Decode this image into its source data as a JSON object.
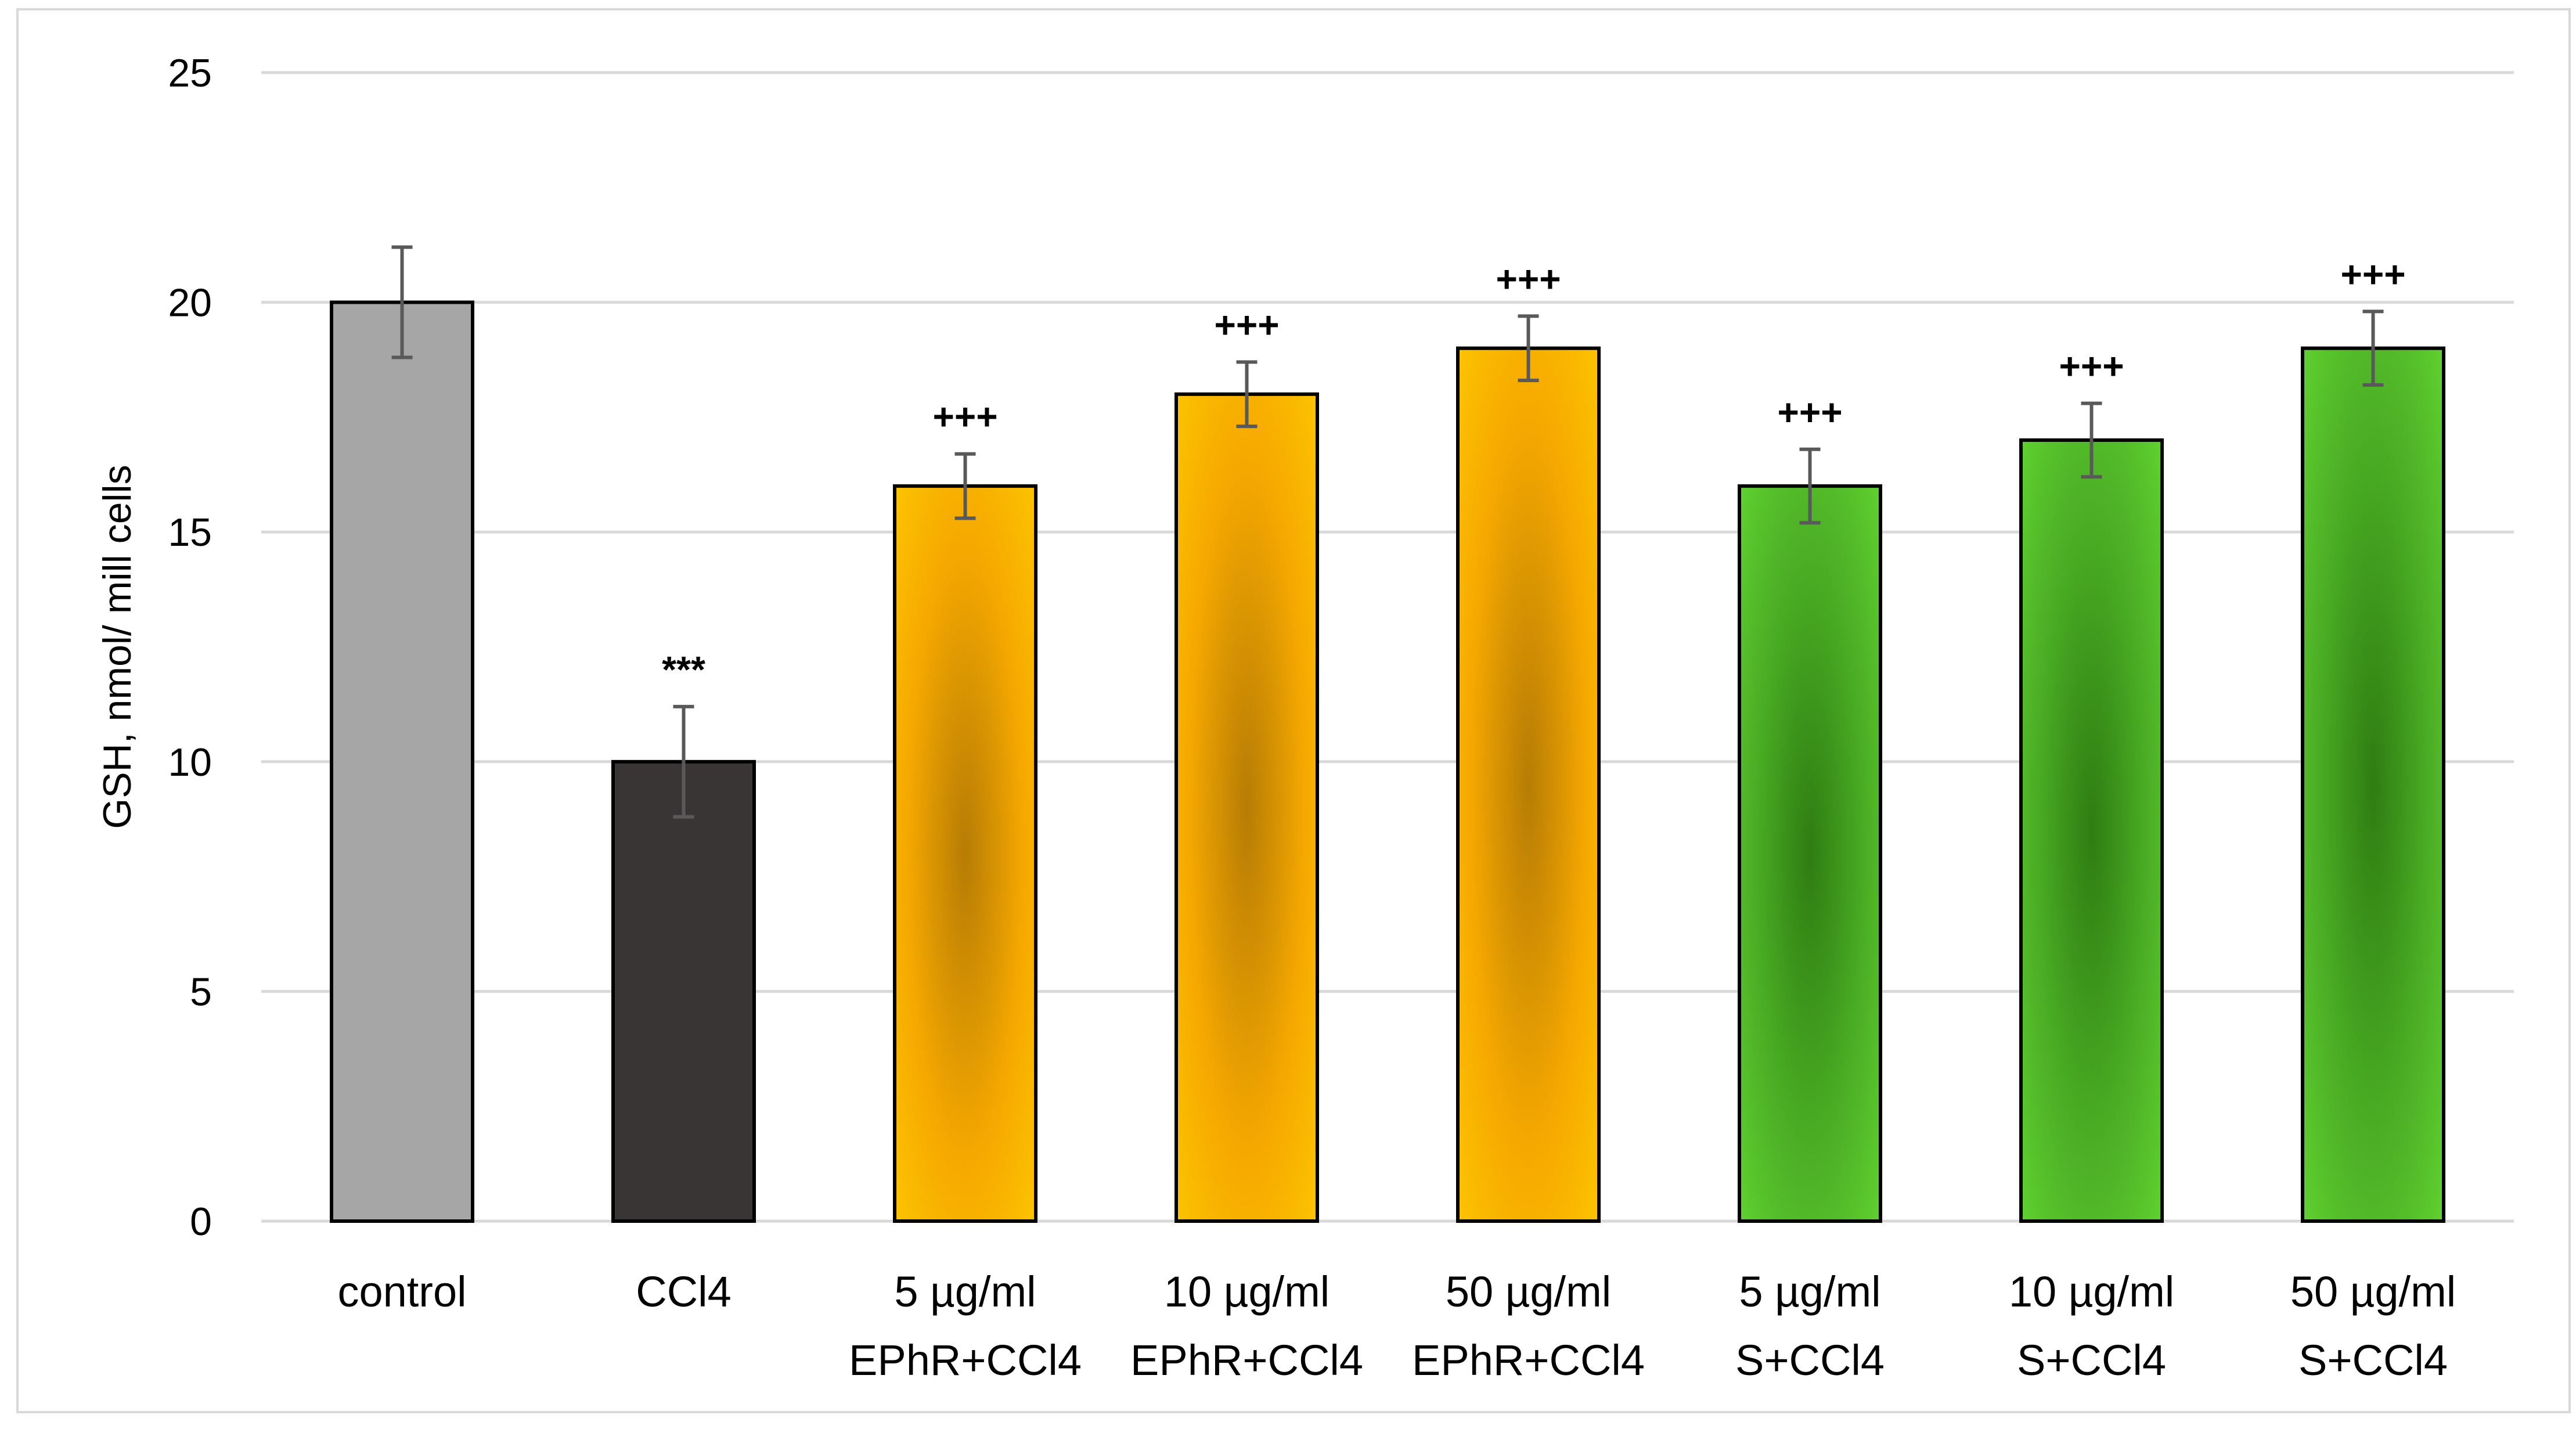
{
  "chart_data": {
    "type": "bar",
    "title": "",
    "xlabel": "",
    "ylabel": "GSH, nmol/ mill cells",
    "ylim": [
      0,
      25
    ],
    "yticks": [
      0,
      5,
      10,
      15,
      20,
      25
    ],
    "grid": true,
    "categories": [
      {
        "lines": [
          "control"
        ]
      },
      {
        "lines": [
          "CCl4"
        ]
      },
      {
        "lines": [
          "5 µg/ml",
          "EPhR+CCl4"
        ]
      },
      {
        "lines": [
          "10 µg/ml",
          "EPhR+CCl4"
        ]
      },
      {
        "lines": [
          "50 µg/ml",
          "EPhR+CCl4"
        ]
      },
      {
        "lines": [
          "5 µg/ml",
          "S+CCl4"
        ]
      },
      {
        "lines": [
          "10 µg/ml",
          "S+CCl4"
        ]
      },
      {
        "lines": [
          "50 µg/ml",
          "S+CCl4"
        ]
      }
    ],
    "values": [
      20,
      10,
      16,
      18,
      19,
      16,
      17,
      19
    ],
    "errors": [
      1.2,
      1.2,
      0.7,
      0.7,
      0.7,
      0.8,
      0.8,
      0.8
    ],
    "annotations": [
      "",
      "***",
      "+++",
      "+++",
      "+++",
      "+++",
      "+++",
      "+++"
    ],
    "fills": [
      "gray",
      "dark",
      "gold",
      "gold",
      "gold",
      "green",
      "green",
      "green"
    ]
  }
}
